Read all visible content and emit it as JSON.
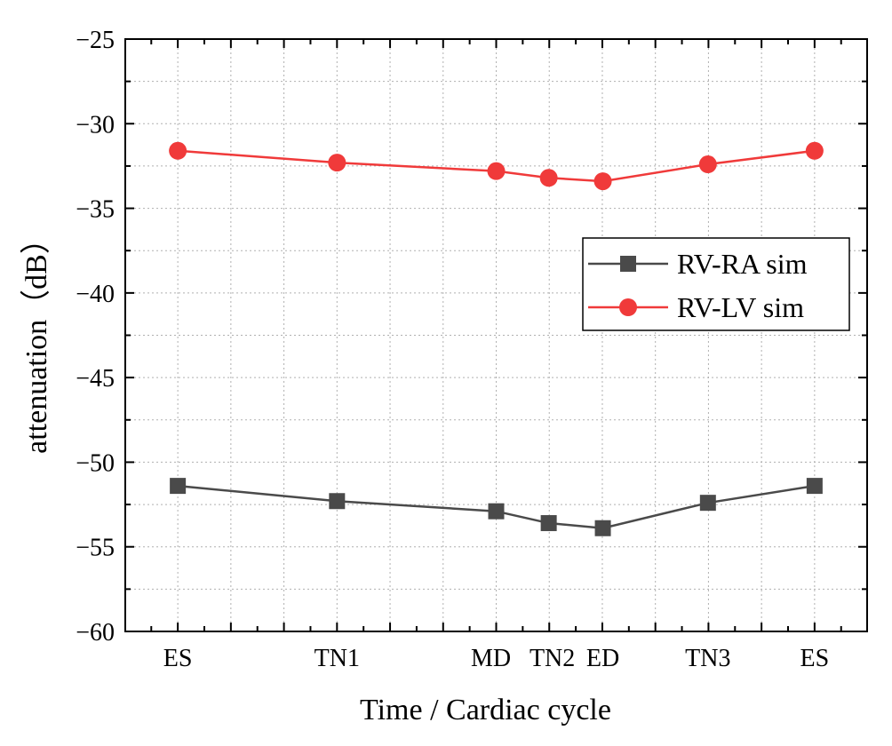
{
  "chart_data": {
    "type": "line",
    "xlabel": "Time / Cardiac cycle",
    "ylabel": "attenuation（dB）",
    "ylim": [
      -60,
      -25
    ],
    "yticks": [
      -60,
      -55,
      -50,
      -45,
      -40,
      -35,
      -30,
      -25
    ],
    "x": [
      0,
      1,
      2,
      2.33,
      2.67,
      3.33,
      4
    ],
    "xlim": [
      -0.33,
      4.33
    ],
    "categories": [
      "ES",
      "TN1",
      "MD",
      "TN2",
      "ED",
      "TN3",
      "ES"
    ],
    "grid": true,
    "legend_position": "right",
    "series": [
      {
        "name": "RV-RA sim",
        "marker": "square",
        "color": "#4a4a4a",
        "values": [
          -51.4,
          -52.3,
          -52.9,
          -53.6,
          -53.9,
          -52.4,
          -51.4
        ]
      },
      {
        "name": "RV-LV sim",
        "marker": "circle",
        "color": "#f03a3a",
        "values": [
          -31.6,
          -32.3,
          -32.8,
          -33.2,
          -33.4,
          -32.4,
          -31.6
        ]
      }
    ]
  }
}
